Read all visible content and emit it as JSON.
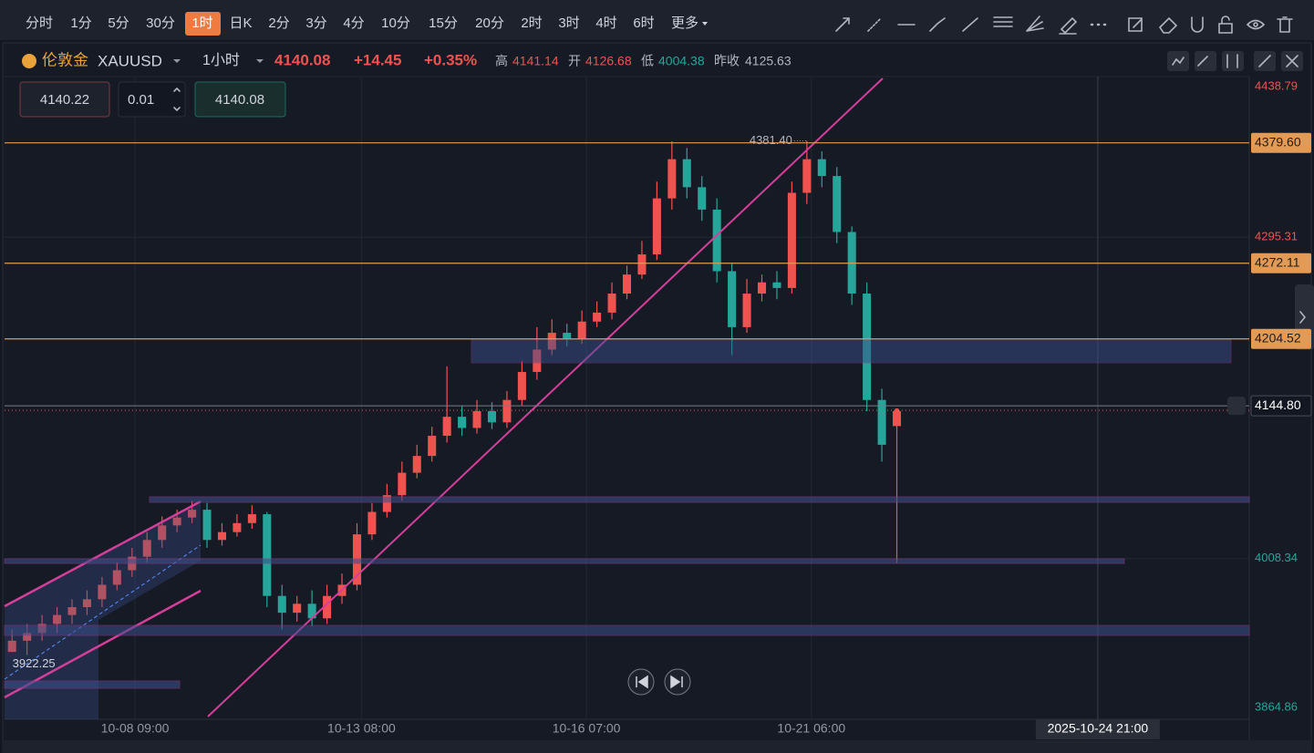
{
  "toolbar": {
    "timeframes": [
      "分时",
      "1分",
      "5分",
      "30分",
      "1时",
      "日K",
      "2分",
      "3分",
      "4分",
      "10分",
      "15分",
      "20分",
      "2时",
      "3时",
      "4时",
      "6时"
    ],
    "more": "更多"
  },
  "header": {
    "symbol_name": "伦敦金",
    "symbol": "XAUUSD",
    "interval": "1小时",
    "last": "4140.08",
    "change": "+14.45",
    "change_pct": "+0.35%",
    "high_label": "高",
    "high": "4141.14",
    "open_label": "开",
    "open": "4126.68",
    "low_label": "低",
    "low": "4004.38",
    "prev_label": "昨收",
    "prev": "4125.63"
  },
  "order": {
    "sell": "4140.22",
    "qty": "0.01",
    "buy": "4140.08"
  },
  "chart_data": {
    "type": "candlestick",
    "up_color": "#ef5350",
    "down_color": "#26a69a",
    "open": [
      3925,
      3935,
      3942,
      3950,
      3958,
      3965,
      3972,
      3985,
      3998,
      4010,
      4025,
      4038,
      4045,
      4052,
      4025,
      4032,
      4040,
      4048,
      3975,
      3960,
      3968,
      3955,
      3975,
      3985,
      4030,
      4050,
      4065,
      4085,
      4100,
      4118,
      4135,
      4125,
      4140,
      4130,
      4150,
      4175,
      4195,
      4210,
      4205,
      4220,
      4228,
      4245,
      4262,
      4280,
      4330,
      4365,
      4340,
      4320,
      4265,
      4215,
      4245,
      4255,
      4250,
      4335,
      4365,
      4350,
      4300,
      4245,
      4150,
      4126.68
    ],
    "high": [
      3945,
      3950,
      3958,
      3965,
      3972,
      3980,
      3992,
      4005,
      4018,
      4032,
      4046,
      4052,
      4060,
      4058,
      4040,
      4048,
      4056,
      4050,
      3985,
      3975,
      3980,
      3985,
      3995,
      4040,
      4058,
      4075,
      4095,
      4110,
      4126,
      4180,
      4145,
      4150,
      4148,
      4158,
      4185,
      4215,
      4222,
      4218,
      4230,
      4238,
      4255,
      4270,
      4292,
      4345,
      4381,
      4375,
      4350,
      4330,
      4272,
      4258,
      4262,
      4265,
      4345,
      4381.4,
      4372,
      4358,
      4305,
      4255,
      4160,
      4141.14
    ],
    "low": [
      3925,
      3922.25,
      3935,
      3942,
      3950,
      3958,
      3965,
      3980,
      3992,
      4005,
      4018,
      4032,
      4040,
      4018,
      4020,
      4028,
      4035,
      3965,
      3945,
      3952,
      3948,
      3950,
      3968,
      3980,
      4025,
      4045,
      4060,
      4080,
      4095,
      4112,
      4118,
      4120,
      4124,
      4125,
      4145,
      4168,
      4190,
      4198,
      4200,
      4215,
      4222,
      4240,
      4258,
      4275,
      4320,
      4330,
      4310,
      4255,
      4190,
      4210,
      4238,
      4240,
      4245,
      4325,
      4340,
      4290,
      4235,
      4140,
      4095,
      4004.38
    ],
    "close": [
      3935,
      3942,
      3950,
      3958,
      3965,
      3972,
      3985,
      3998,
      4010,
      4025,
      4038,
      4045,
      4052,
      4025,
      4032,
      4040,
      4048,
      3975,
      3960,
      3968,
      3955,
      3975,
      3985,
      4030,
      4050,
      4065,
      4085,
      4100,
      4118,
      4135,
      4125,
      4140,
      4130,
      4150,
      4175,
      4195,
      4210,
      4205,
      4220,
      4228,
      4245,
      4262,
      4280,
      4330,
      4365,
      4340,
      4320,
      4265,
      4215,
      4245,
      4255,
      4250,
      4335,
      4365,
      4350,
      4300,
      4245,
      4150,
      4110,
      4140.08
    ],
    "xlim": [
      -0.5,
      82.5
    ],
    "xticks": [
      {
        "value": 8.2,
        "label": "10-08 09:00"
      },
      {
        "value": 23.3,
        "label": "10-13 08:00"
      },
      {
        "value": 38.3,
        "label": "10-16 07:00"
      },
      {
        "value": 53.3,
        "label": "10-21 06:00"
      }
    ],
    "ylim": [
      3864.86,
      4438.79
    ],
    "yticks": [
      3864.86,
      4008.34,
      4295.31,
      4438.79
    ],
    "grid": true,
    "levels": [
      {
        "value": 4379.6,
        "label": "4379.60"
      },
      4272.11,
      4204.52
    ],
    "level_color": "#e39a54",
    "alert_line": {
      "value": 4144.8,
      "label": "4144.80"
    },
    "annotations": [
      {
        "x": 53,
        "price": {
          "value": 4381.4,
          "label": "4381.40"
        }
      },
      {
        "x": 1,
        "price": 3922.25
      }
    ],
    "crosshair": {
      "x": 72.4,
      "label": "2025-10-24 21:00"
    }
  }
}
